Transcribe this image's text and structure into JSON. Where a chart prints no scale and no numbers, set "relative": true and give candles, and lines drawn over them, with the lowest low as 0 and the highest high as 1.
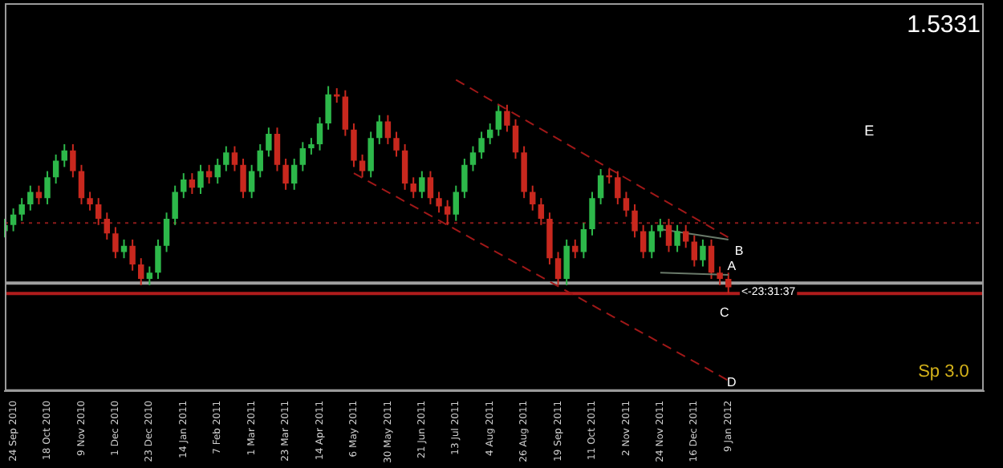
{
  "chart_data": {
    "type": "candlestick",
    "relative": true,
    "tick_labels": "x",
    "grid": false,
    "legend": false,
    "marker": "none",
    "categories": [
      null,
      "24 Sep 2010",
      null,
      null,
      null,
      "18 Oct 2010",
      null,
      null,
      null,
      "9 Nov 2010",
      null,
      null,
      null,
      "1 Dec 2010",
      null,
      null,
      null,
      "23 Dec 2010",
      null,
      null,
      null,
      "14 Jan 2011",
      null,
      null,
      null,
      "7 Feb 2011",
      null,
      null,
      null,
      "1 Mar 2011",
      null,
      null,
      null,
      "23 Mar 2011",
      null,
      null,
      null,
      "14 Apr 2011",
      null,
      null,
      null,
      "6 May 2011",
      null,
      null,
      null,
      "30 May 2011",
      null,
      null,
      null,
      "21 Jun 2011",
      null,
      null,
      null,
      "13 Jul 2011",
      null,
      null,
      null,
      "4 Aug 2011",
      null,
      null,
      null,
      "26 Aug 2011",
      null,
      null,
      null,
      "19 Sep 2011",
      null,
      null,
      null,
      "11 Oct 2011",
      null,
      null,
      null,
      "2 Nov 2011",
      null,
      null,
      null,
      "24 Nov 2011",
      null,
      null,
      null,
      "16 Dec 2011",
      null,
      null,
      null,
      "9 Jan 2012",
      null,
      null,
      null,
      null,
      null,
      null,
      null,
      null,
      null,
      null,
      null,
      null,
      null,
      null,
      null,
      null,
      null,
      null,
      null,
      null,
      null,
      null,
      null,
      null,
      null,
      null,
      null,
      null,
      null,
      null
    ],
    "ohlc": [
      [
        0.3,
        0.36,
        0.27,
        0.33
      ],
      [
        0.33,
        0.41,
        0.3,
        0.38
      ],
      [
        0.38,
        0.46,
        0.35,
        0.43
      ],
      [
        0.43,
        0.52,
        0.4,
        0.49
      ],
      [
        0.49,
        0.52,
        0.43,
        0.46
      ],
      [
        0.46,
        0.59,
        0.43,
        0.56
      ],
      [
        0.56,
        0.67,
        0.53,
        0.64
      ],
      [
        0.64,
        0.72,
        0.61,
        0.69
      ],
      [
        0.69,
        0.72,
        0.56,
        0.59
      ],
      [
        0.59,
        0.62,
        0.43,
        0.46
      ],
      [
        0.46,
        0.49,
        0.4,
        0.43
      ],
      [
        0.43,
        0.46,
        0.33,
        0.36
      ],
      [
        0.36,
        0.39,
        0.26,
        0.29
      ],
      [
        0.29,
        0.32,
        0.17,
        0.2
      ],
      [
        0.2,
        0.26,
        0.17,
        0.23
      ],
      [
        0.23,
        0.26,
        0.11,
        0.14
      ],
      [
        0.14,
        0.17,
        0.04,
        0.07
      ],
      [
        0.07,
        0.13,
        0.04,
        0.1
      ],
      [
        0.1,
        0.26,
        0.07,
        0.23
      ],
      [
        0.23,
        0.39,
        0.2,
        0.36
      ],
      [
        0.36,
        0.52,
        0.33,
        0.49
      ],
      [
        0.49,
        0.58,
        0.46,
        0.55
      ],
      [
        0.55,
        0.58,
        0.48,
        0.51
      ],
      [
        0.51,
        0.62,
        0.48,
        0.59
      ],
      [
        0.59,
        0.62,
        0.53,
        0.56
      ],
      [
        0.56,
        0.65,
        0.53,
        0.62
      ],
      [
        0.62,
        0.71,
        0.59,
        0.68
      ],
      [
        0.68,
        0.71,
        0.59,
        0.62
      ],
      [
        0.62,
        0.65,
        0.46,
        0.49
      ],
      [
        0.49,
        0.62,
        0.46,
        0.59
      ],
      [
        0.59,
        0.72,
        0.56,
        0.69
      ],
      [
        0.69,
        0.8,
        0.66,
        0.77
      ],
      [
        0.77,
        0.8,
        0.59,
        0.62
      ],
      [
        0.62,
        0.65,
        0.5,
        0.53
      ],
      [
        0.53,
        0.65,
        0.5,
        0.62
      ],
      [
        0.62,
        0.73,
        0.59,
        0.7
      ],
      [
        0.7,
        0.75,
        0.67,
        0.72
      ],
      [
        0.72,
        0.85,
        0.69,
        0.82
      ],
      [
        0.82,
        1.0,
        0.79,
        0.96
      ],
      [
        0.96,
        0.99,
        0.92,
        0.95
      ],
      [
        0.95,
        0.98,
        0.76,
        0.79
      ],
      [
        0.79,
        0.82,
        0.61,
        0.64
      ],
      [
        0.64,
        0.67,
        0.56,
        0.59
      ],
      [
        0.59,
        0.78,
        0.56,
        0.75
      ],
      [
        0.75,
        0.86,
        0.72,
        0.83
      ],
      [
        0.83,
        0.86,
        0.72,
        0.75
      ],
      [
        0.75,
        0.78,
        0.66,
        0.69
      ],
      [
        0.69,
        0.72,
        0.5,
        0.53
      ],
      [
        0.53,
        0.56,
        0.46,
        0.49
      ],
      [
        0.49,
        0.59,
        0.46,
        0.56
      ],
      [
        0.56,
        0.59,
        0.43,
        0.46
      ],
      [
        0.46,
        0.49,
        0.39,
        0.42
      ],
      [
        0.42,
        0.45,
        0.33,
        0.38
      ],
      [
        0.38,
        0.52,
        0.35,
        0.49
      ],
      [
        0.49,
        0.65,
        0.46,
        0.62
      ],
      [
        0.62,
        0.71,
        0.59,
        0.68
      ],
      [
        0.68,
        0.78,
        0.65,
        0.75
      ],
      [
        0.75,
        0.82,
        0.72,
        0.79
      ],
      [
        0.79,
        0.91,
        0.76,
        0.88
      ],
      [
        0.88,
        0.91,
        0.78,
        0.81
      ],
      [
        0.81,
        0.84,
        0.65,
        0.68
      ],
      [
        0.68,
        0.71,
        0.46,
        0.49
      ],
      [
        0.49,
        0.52,
        0.4,
        0.43
      ],
      [
        0.43,
        0.46,
        0.33,
        0.36
      ],
      [
        0.36,
        0.39,
        0.14,
        0.17
      ],
      [
        0.17,
        0.2,
        0.04,
        0.07
      ],
      [
        0.07,
        0.26,
        0.04,
        0.23
      ],
      [
        0.23,
        0.26,
        0.17,
        0.2
      ],
      [
        0.2,
        0.34,
        0.17,
        0.31
      ],
      [
        0.31,
        0.49,
        0.28,
        0.46
      ],
      [
        0.46,
        0.6,
        0.43,
        0.57
      ],
      [
        0.57,
        0.6,
        0.53,
        0.56
      ],
      [
        0.56,
        0.59,
        0.43,
        0.46
      ],
      [
        0.46,
        0.49,
        0.37,
        0.4
      ],
      [
        0.4,
        0.43,
        0.27,
        0.3
      ],
      [
        0.3,
        0.33,
        0.17,
        0.2
      ],
      [
        0.2,
        0.33,
        0.17,
        0.3
      ],
      [
        0.3,
        0.36,
        0.27,
        0.33
      ],
      [
        0.33,
        0.36,
        0.2,
        0.23
      ],
      [
        0.23,
        0.33,
        0.2,
        0.3
      ],
      [
        0.3,
        0.33,
        0.22,
        0.25
      ],
      [
        0.25,
        0.28,
        0.13,
        0.16
      ],
      [
        0.16,
        0.26,
        0.13,
        0.23
      ],
      [
        0.23,
        0.26,
        0.07,
        0.1
      ],
      [
        0.1,
        0.13,
        0.04,
        0.07
      ],
      [
        0.07,
        0.1,
        0.0,
        0.03
      ],
      null,
      null,
      null,
      null,
      null,
      null,
      null,
      null,
      null,
      null,
      null,
      null,
      null,
      null,
      null,
      null,
      null,
      null,
      null,
      null,
      null,
      null,
      null,
      null,
      null,
      null,
      null,
      null,
      null,
      null
    ],
    "colors": [
      "#2db84a",
      "#2db84a",
      "#2db84a",
      "#2db84a",
      "#c8281e",
      "#2db84a",
      "#2db84a",
      "#2db84a",
      "#c8281e",
      "#c8281e",
      "#c8281e",
      "#c8281e",
      "#c8281e",
      "#c8281e",
      "#2db84a",
      "#c8281e",
      "#c8281e",
      "#2db84a",
      "#2db84a",
      "#2db84a",
      "#2db84a",
      "#2db84a",
      "#c8281e",
      "#2db84a",
      "#c8281e",
      "#2db84a",
      "#2db84a",
      "#c8281e",
      "#c8281e",
      "#2db84a",
      "#2db84a",
      "#2db84a",
      "#c8281e",
      "#c8281e",
      "#2db84a",
      "#2db84a",
      "#2db84a",
      "#2db84a",
      "#2db84a",
      "#c8281e",
      "#c8281e",
      "#c8281e",
      "#c8281e",
      "#2db84a",
      "#2db84a",
      "#c8281e",
      "#c8281e",
      "#c8281e",
      "#c8281e",
      "#2db84a",
      "#c8281e",
      "#c8281e",
      "#c8281e",
      "#2db84a",
      "#2db84a",
      "#2db84a",
      "#2db84a",
      "#2db84a",
      "#2db84a",
      "#c8281e",
      "#c8281e",
      "#c8281e",
      "#c8281e",
      "#c8281e",
      "#c8281e",
      "#c8281e",
      "#2db84a",
      "#c8281e",
      "#2db84a",
      "#2db84a",
      "#2db84a",
      "#c8281e",
      "#c8281e",
      "#c8281e",
      "#c8281e",
      "#c8281e",
      "#2db84a",
      "#2db84a",
      "#c8281e",
      "#2db84a",
      "#c8281e",
      "#c8281e",
      "#2db84a",
      "#c8281e",
      "#c8281e",
      "#c8281e",
      null,
      null,
      null,
      null,
      null,
      null,
      null,
      null,
      null,
      null,
      null,
      null,
      null,
      null,
      null,
      null,
      null,
      null,
      null,
      null,
      null,
      null,
      null,
      null,
      null,
      null,
      null,
      null,
      null,
      null
    ],
    "series": [
      {
        "type": "line",
        "x": [
          "13 Jul 2011",
          "9 Jan 2012"
        ],
        "values": [
          1.03,
          0.27
        ],
        "color": "#a01818",
        "line_style": "dashed"
      },
      {
        "type": "line",
        "x": [
          "6 May 2011",
          "9 Jan 2012"
        ],
        "values": [
          0.58,
          -0.42
        ],
        "color": "#a01818",
        "line_style": "dashed"
      },
      {
        "type": "line",
        "x": [
          "24 Nov 2011",
          "9 Jan 2012"
        ],
        "values": [
          0.31,
          0.26
        ],
        "color": "#6a7a6a",
        "line_style": "solid"
      },
      {
        "type": "line",
        "x": [
          "24 Nov 2011",
          "9 Jan 2012"
        ],
        "values": [
          0.1,
          0.09
        ],
        "color": "#6a7a6a",
        "line_style": "solid"
      }
    ],
    "ref_lines": [
      {
        "axis": "y",
        "value": 0.05,
        "color": "#a0a0a0",
        "line_style": "solid"
      },
      {
        "axis": "y",
        "value": 0.0,
        "color": "#b01c1c",
        "line_style": "solid"
      },
      {
        "axis": "y",
        "value": 0.34,
        "color": "#8b1a1a",
        "line_style": "dotted"
      }
    ],
    "annotations": [
      {
        "text": "A",
        "x": "9 Jan 2012",
        "y": 0.13
      },
      "B",
      "C",
      {
        "text": "D",
        "x": "9 Jan 2012",
        "y": -0.43
      },
      "E",
      "<-23:31:37",
      "1.5331",
      "Sp 3.0"
    ]
  }
}
